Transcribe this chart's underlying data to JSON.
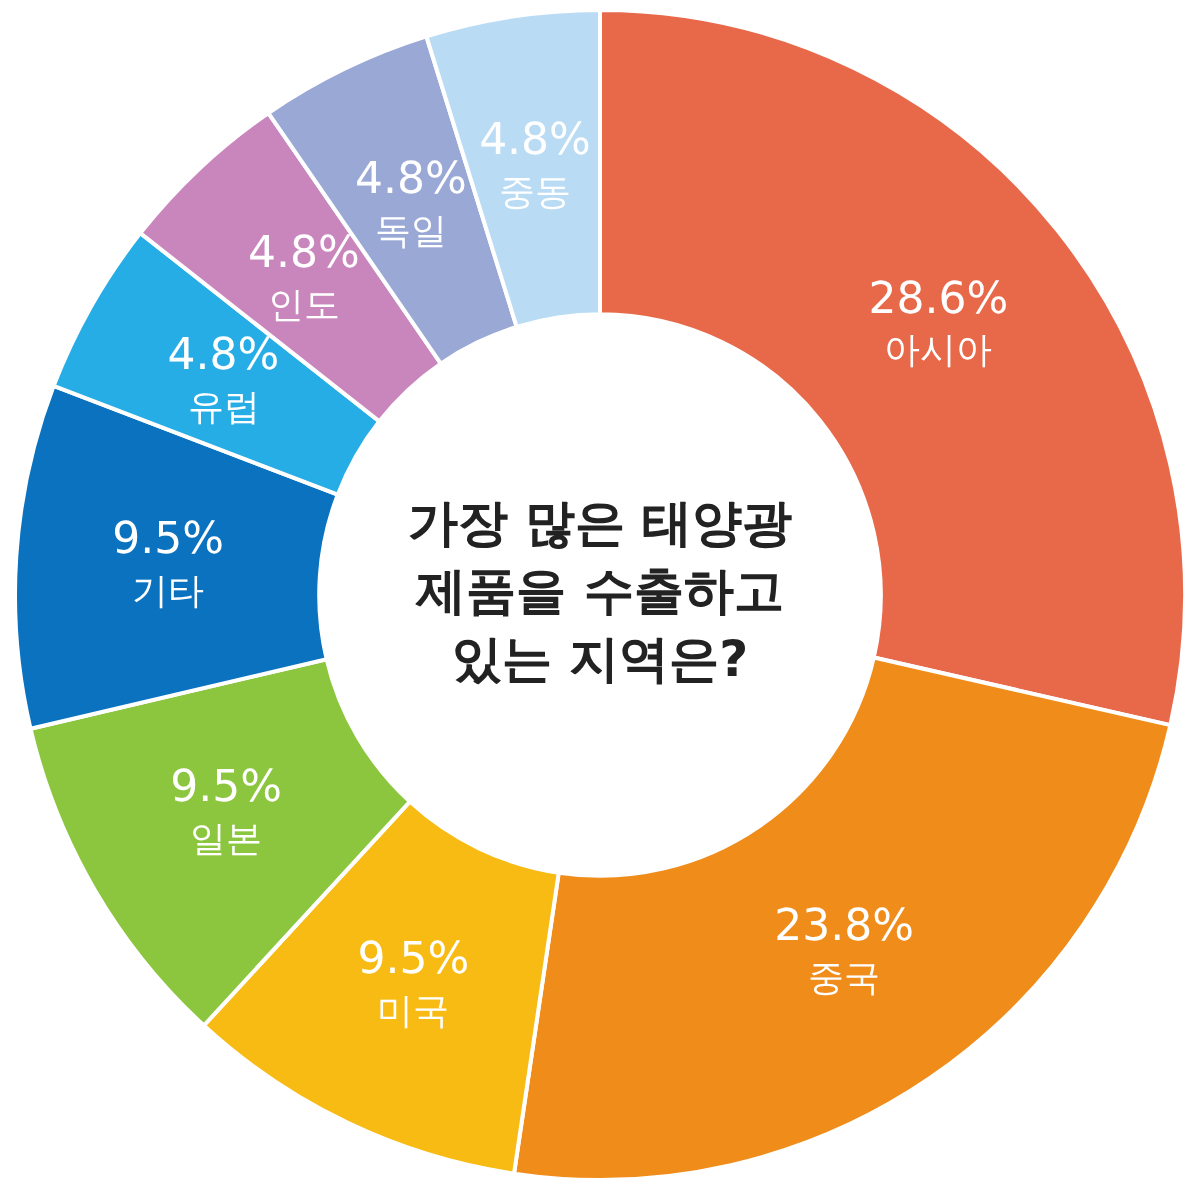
{
  "chart_data": {
    "type": "donut",
    "title": "가장 많은 태양광 제품을 수출하고 있는 지역은?",
    "categories": [
      "아시아",
      "중국",
      "미국",
      "일본",
      "기타",
      "유럽",
      "인도",
      "독일",
      "중동"
    ],
    "values": [
      28.6,
      23.8,
      9.5,
      9.5,
      9.5,
      4.8,
      4.8,
      4.8,
      4.8
    ],
    "value_labels": [
      "28.6%",
      "23.8%",
      "9.5%",
      "9.5%",
      "9.5%",
      "4.8%",
      "4.8%",
      "4.8%",
      "4.8%"
    ],
    "colors": [
      "#e8694a",
      "#ef8c1a",
      "#f7bb13",
      "#8cc63f",
      "#0a72bf",
      "#26ade5",
      "#c986bd",
      "#9aa8d6",
      "#b9dbf4"
    ],
    "legend": false
  }
}
